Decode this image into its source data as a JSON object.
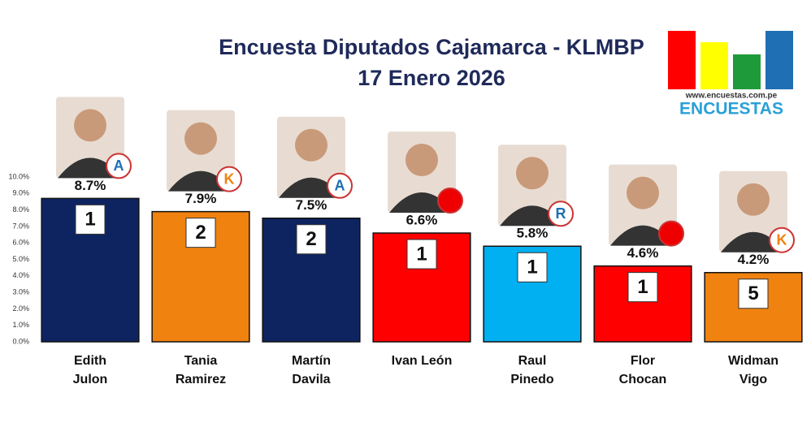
{
  "chart_data": {
    "type": "bar",
    "title": "Encuesta Diputados Cajamarca - KLMBP",
    "subtitle": "17 Enero 2026",
    "categories": [
      "Edith Julon",
      "Tania Ramirez",
      "Martín Davila",
      "Ivan León",
      "Raul Pinedo",
      "Flor Chocan",
      "Widman Vigo"
    ],
    "values": [
      8.7,
      7.9,
      7.5,
      6.6,
      5.8,
      4.6,
      4.2
    ],
    "value_labels": [
      "8.7%",
      "7.9%",
      "7.5%",
      "6.6%",
      "5.8%",
      "4.6%",
      "4.2%"
    ],
    "seats": [
      1,
      2,
      2,
      1,
      1,
      1,
      5
    ],
    "colors": [
      "#0e2461",
      "#f0820f",
      "#0e2461",
      "#ff0000",
      "#00b0f0",
      "#ff0000",
      "#f0820f"
    ],
    "party_logos": [
      "A",
      "K",
      "A",
      null,
      "R",
      null,
      "K"
    ],
    "ylim": [
      0,
      10
    ],
    "yticks": [
      {
        "value": 0,
        "label": "0.0%"
      },
      {
        "value": 1,
        "label": "1.0%"
      },
      {
        "value": 2,
        "label": "2.0%"
      },
      {
        "value": 3,
        "label": "3.0%"
      },
      {
        "value": 4,
        "label": "4.0%"
      },
      {
        "value": 5,
        "label": "5.0%"
      },
      {
        "value": 6,
        "label": "6.0%"
      },
      {
        "value": 7,
        "label": "7.0%"
      },
      {
        "value": 8,
        "label": "8.0%"
      },
      {
        "value": 9,
        "label": "9.0%"
      },
      {
        "value": 10,
        "label": "10.0%"
      }
    ],
    "grid": false
  },
  "logo": {
    "url": "www.encuestas.com.pe",
    "name": "ENCUESTAS"
  }
}
